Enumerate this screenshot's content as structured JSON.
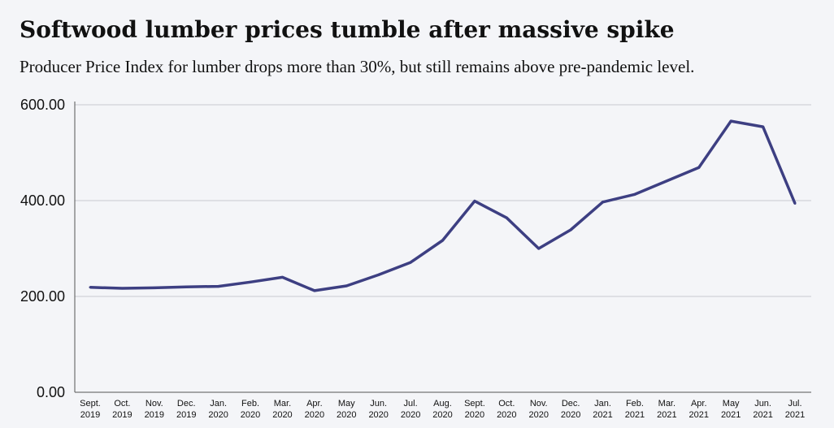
{
  "title": "Softwood lumber prices tumble after massive spike",
  "subtitle": "Producer Price Index for lumber drops more than 30%, but still remains above pre-pandemic level.",
  "chart_data": {
    "type": "line",
    "title": "Softwood lumber prices tumble after massive spike",
    "subtitle": "Producer Price Index for lumber drops more than 30%, but still remains above pre-pandemic level.",
    "xlabel": "",
    "ylabel": "",
    "ylim": [
      0,
      600
    ],
    "yticks": [
      "0.00",
      "200.00",
      "400.00",
      "600.00"
    ],
    "grid": "horizontal",
    "legend": "none",
    "line_color": "#3d3f82",
    "categories": [
      [
        "Sept.",
        "2019"
      ],
      [
        "Oct.",
        "2019"
      ],
      [
        "Nov.",
        "2019"
      ],
      [
        "Dec.",
        "2019"
      ],
      [
        "Jan.",
        "2020"
      ],
      [
        "Feb.",
        "2020"
      ],
      [
        "Mar.",
        "2020"
      ],
      [
        "Apr.",
        "2020"
      ],
      [
        "May",
        "2020"
      ],
      [
        "Jun.",
        "2020"
      ],
      [
        "Jul.",
        "2020"
      ],
      [
        "Aug.",
        "2020"
      ],
      [
        "Sept.",
        "2020"
      ],
      [
        "Oct.",
        "2020"
      ],
      [
        "Nov.",
        "2020"
      ],
      [
        "Dec.",
        "2020"
      ],
      [
        "Jan.",
        "2021"
      ],
      [
        "Feb.",
        "2021"
      ],
      [
        "Mar.",
        "2021"
      ],
      [
        "Apr.",
        "2021"
      ],
      [
        "May",
        "2021"
      ],
      [
        "Jun.",
        "2021"
      ],
      [
        "Jul.",
        "2021"
      ]
    ],
    "series": [
      {
        "values": [
          219,
          217,
          218,
          220,
          221,
          230,
          240,
          212,
          222,
          245,
          271,
          317,
          399,
          364,
          300,
          339,
          397,
          413,
          441,
          469,
          566,
          554,
          394
        ]
      }
    ]
  }
}
